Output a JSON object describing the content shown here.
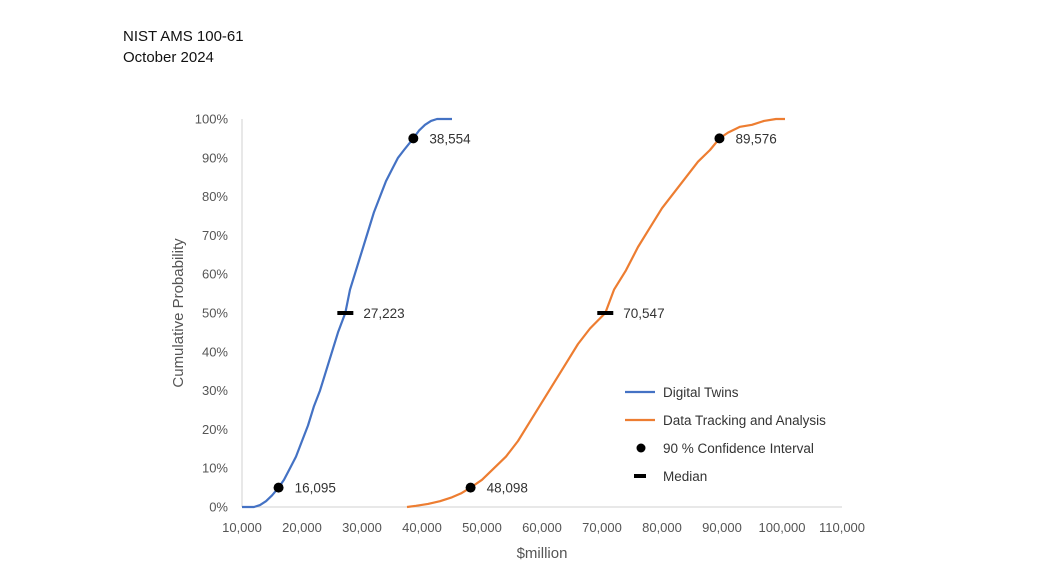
{
  "header": {
    "line1": "NIST AMS 100-61",
    "line2": "October 2024"
  },
  "chart_data": {
    "type": "line",
    "xlabel": "$million",
    "ylabel": "Cumulative Probability",
    "xlim": [
      10000,
      110000
    ],
    "ylim": [
      0,
      1
    ],
    "x_ticks": [
      10000,
      20000,
      30000,
      40000,
      50000,
      60000,
      70000,
      80000,
      90000,
      100000,
      110000
    ],
    "x_tick_labels": [
      "10,000",
      "20,000",
      "30,000",
      "40,000",
      "50,000",
      "60,000",
      "70,000",
      "80,000",
      "90,000",
      "100,000",
      "110,000"
    ],
    "y_ticks": [
      0,
      0.1,
      0.2,
      0.3,
      0.4,
      0.5,
      0.6,
      0.7,
      0.8,
      0.9,
      1.0
    ],
    "y_tick_labels": [
      "0%",
      "10%",
      "20%",
      "30%",
      "40%",
      "50%",
      "60%",
      "70%",
      "80%",
      "90%",
      "100%"
    ],
    "grid": false,
    "legend_position": "bottom-right",
    "series": [
      {
        "name": "Digital Twins",
        "color": "#4472C4",
        "points": [
          [
            10000,
            0.0
          ],
          [
            12000,
            0.0
          ],
          [
            13000,
            0.005
          ],
          [
            14000,
            0.015
          ],
          [
            15000,
            0.03
          ],
          [
            16095,
            0.05
          ],
          [
            17000,
            0.07
          ],
          [
            18000,
            0.1
          ],
          [
            19000,
            0.13
          ],
          [
            20000,
            0.17
          ],
          [
            21000,
            0.21
          ],
          [
            22000,
            0.26
          ],
          [
            23000,
            0.3
          ],
          [
            24000,
            0.35
          ],
          [
            25000,
            0.4
          ],
          [
            26000,
            0.45
          ],
          [
            27223,
            0.5
          ],
          [
            28000,
            0.56
          ],
          [
            29000,
            0.61
          ],
          [
            30000,
            0.66
          ],
          [
            31000,
            0.71
          ],
          [
            32000,
            0.76
          ],
          [
            33000,
            0.8
          ],
          [
            34000,
            0.84
          ],
          [
            35000,
            0.87
          ],
          [
            36000,
            0.9
          ],
          [
            37000,
            0.92
          ],
          [
            38554,
            0.95
          ],
          [
            39500,
            0.97
          ],
          [
            40500,
            0.985
          ],
          [
            41500,
            0.995
          ],
          [
            42500,
            1.0
          ],
          [
            45000,
            1.0
          ]
        ]
      },
      {
        "name": "Data Tracking and Analysis",
        "color": "#ED7D31",
        "points": [
          [
            37500,
            0.0
          ],
          [
            39000,
            0.003
          ],
          [
            41000,
            0.008
          ],
          [
            43000,
            0.015
          ],
          [
            45000,
            0.025
          ],
          [
            46500,
            0.035
          ],
          [
            48098,
            0.05
          ],
          [
            50000,
            0.07
          ],
          [
            52000,
            0.1
          ],
          [
            54000,
            0.13
          ],
          [
            56000,
            0.17
          ],
          [
            58000,
            0.22
          ],
          [
            60000,
            0.27
          ],
          [
            62000,
            0.32
          ],
          [
            64000,
            0.37
          ],
          [
            66000,
            0.42
          ],
          [
            68000,
            0.46
          ],
          [
            70547,
            0.5
          ],
          [
            72000,
            0.56
          ],
          [
            74000,
            0.61
          ],
          [
            76000,
            0.67
          ],
          [
            78000,
            0.72
          ],
          [
            80000,
            0.77
          ],
          [
            82000,
            0.81
          ],
          [
            84000,
            0.85
          ],
          [
            86000,
            0.89
          ],
          [
            88000,
            0.92
          ],
          [
            89576,
            0.95
          ],
          [
            91000,
            0.965
          ],
          [
            93000,
            0.98
          ],
          [
            95000,
            0.985
          ],
          [
            97000,
            0.995
          ],
          [
            99000,
            1.0
          ],
          [
            100500,
            1.0
          ]
        ]
      }
    ],
    "confidence_markers": [
      {
        "x": 16095,
        "y": 0.05,
        "label": "16,095"
      },
      {
        "x": 38554,
        "y": 0.95,
        "label": "38,554"
      },
      {
        "x": 48098,
        "y": 0.05,
        "label": "48,098"
      },
      {
        "x": 89576,
        "y": 0.95,
        "label": "89,576"
      }
    ],
    "median_markers": [
      {
        "x": 27223,
        "y": 0.5,
        "label": "27,223"
      },
      {
        "x": 70547,
        "y": 0.5,
        "label": "70,547"
      }
    ],
    "legend": [
      {
        "label": "Digital Twins",
        "kind": "line",
        "color": "#4472C4"
      },
      {
        "label": "Data Tracking and Analysis",
        "kind": "line",
        "color": "#ED7D31"
      },
      {
        "label": "90 % Confidence Interval",
        "kind": "dot",
        "color": "#000000"
      },
      {
        "label": "Median",
        "kind": "dash",
        "color": "#000000"
      }
    ]
  }
}
